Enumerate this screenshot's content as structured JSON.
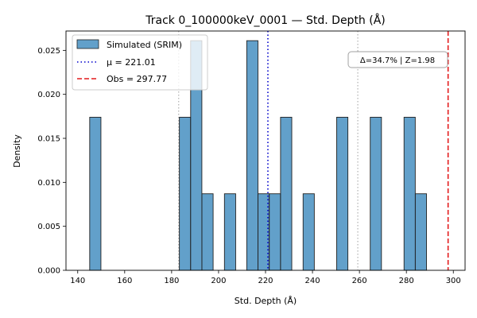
{
  "chart_data": {
    "type": "bar",
    "title": "Track 0_100000keV_0001 — Std. Depth (Å)",
    "xlabel": "Std. Depth (Å)",
    "ylabel": "Density",
    "xlim": [
      135,
      305
    ],
    "ylim": [
      0,
      0.0272
    ],
    "xticks": [
      140,
      160,
      180,
      200,
      220,
      240,
      260,
      280,
      300
    ],
    "yticks": [
      0.0,
      0.005,
      0.01,
      0.015,
      0.02,
      0.025
    ],
    "ytick_labels": [
      "0.000",
      "0.005",
      "0.010",
      "0.015",
      "0.020",
      "0.025"
    ],
    "bin_width": 4.78,
    "series": [
      {
        "name": "Simulated (SRIM)",
        "color": "#1f77b4",
        "bins": [
          {
            "x": 145.1,
            "value": 0.0174
          },
          {
            "x": 183.3,
            "value": 0.0174
          },
          {
            "x": 188.1,
            "value": 0.0261
          },
          {
            "x": 192.9,
            "value": 0.0087
          },
          {
            "x": 202.5,
            "value": 0.0087
          },
          {
            "x": 212.0,
            "value": 0.0261
          },
          {
            "x": 216.8,
            "value": 0.0087
          },
          {
            "x": 221.6,
            "value": 0.0087
          },
          {
            "x": 226.4,
            "value": 0.0174
          },
          {
            "x": 236.0,
            "value": 0.0087
          },
          {
            "x": 250.3,
            "value": 0.0174
          },
          {
            "x": 264.6,
            "value": 0.0174
          },
          {
            "x": 279.0,
            "value": 0.0174
          },
          {
            "x": 283.8,
            "value": 0.0087
          }
        ]
      }
    ],
    "reference_lines": [
      {
        "name": "μ = 221.01",
        "x": 221.01,
        "color": "#0000cc",
        "style": "dotted"
      },
      {
        "name": "Obs = 297.77",
        "x": 297.77,
        "color": "#e31a1c",
        "style": "dashed"
      }
    ],
    "sigma_lines": [
      183.0,
      259.3
    ],
    "annotation": "Δ=34.7% | Z=1.98",
    "legend_position": "upper-left",
    "grid": false
  }
}
